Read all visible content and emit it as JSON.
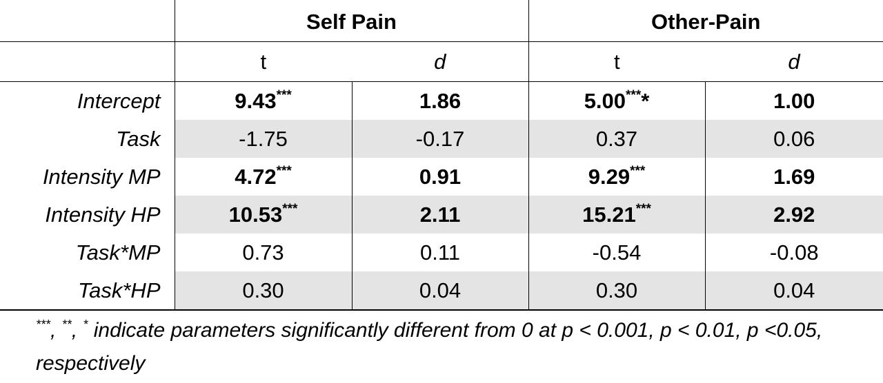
{
  "table": {
    "groups": [
      {
        "label": "Self Pain"
      },
      {
        "label": "Other-Pain"
      }
    ],
    "subheaders": [
      "t",
      "d",
      "t",
      "d"
    ],
    "rows": [
      {
        "label": "Intercept",
        "cells": [
          {
            "value": "9.43",
            "sig": "***",
            "sig_after": "",
            "bold": true
          },
          {
            "value": "1.86",
            "sig": "",
            "sig_after": "",
            "bold": true
          },
          {
            "value": "5.00",
            "sig": "***",
            "sig_after": "*",
            "bold": true
          },
          {
            "value": "1.00",
            "sig": "",
            "sig_after": "",
            "bold": true
          }
        ]
      },
      {
        "label": "Task",
        "cells": [
          {
            "value": "-1.75",
            "sig": "",
            "sig_after": "",
            "bold": false
          },
          {
            "value": "-0.17",
            "sig": "",
            "sig_after": "",
            "bold": false
          },
          {
            "value": "0.37",
            "sig": "",
            "sig_after": "",
            "bold": false
          },
          {
            "value": "0.06",
            "sig": "",
            "sig_after": "",
            "bold": false
          }
        ]
      },
      {
        "label": "Intensity MP",
        "cells": [
          {
            "value": "4.72",
            "sig": "***",
            "sig_after": "",
            "bold": true
          },
          {
            "value": "0.91",
            "sig": "",
            "sig_after": "",
            "bold": true
          },
          {
            "value": "9.29",
            "sig": "***",
            "sig_after": "",
            "bold": true
          },
          {
            "value": "1.69",
            "sig": "",
            "sig_after": "",
            "bold": true
          }
        ]
      },
      {
        "label": "Intensity HP",
        "cells": [
          {
            "value": "10.53",
            "sig": "***",
            "sig_after": "",
            "bold": true
          },
          {
            "value": "2.11",
            "sig": "",
            "sig_after": "",
            "bold": true
          },
          {
            "value": "15.21",
            "sig": "***",
            "sig_after": "",
            "bold": true
          },
          {
            "value": "2.92",
            "sig": "",
            "sig_after": "",
            "bold": true
          }
        ]
      },
      {
        "label": "Task*MP",
        "cells": [
          {
            "value": "0.73",
            "sig": "",
            "sig_after": "",
            "bold": false
          },
          {
            "value": "0.11",
            "sig": "",
            "sig_after": "",
            "bold": false
          },
          {
            "value": "-0.54",
            "sig": "",
            "sig_after": "",
            "bold": false
          },
          {
            "value": "-0.08",
            "sig": "",
            "sig_after": "",
            "bold": false
          }
        ]
      },
      {
        "label": "Task*HP",
        "cells": [
          {
            "value": "0.30",
            "sig": "",
            "sig_after": "",
            "bold": false
          },
          {
            "value": "0.04",
            "sig": "",
            "sig_after": "",
            "bold": false
          },
          {
            "value": "0.30",
            "sig": "",
            "sig_after": "",
            "bold": false
          },
          {
            "value": "0.04",
            "sig": "",
            "sig_after": "",
            "bold": false
          }
        ]
      }
    ],
    "shading_color": "#e4e4e4"
  },
  "footnote": {
    "sup1": "***",
    "sep1": ", ",
    "sup2": "**",
    "sep2": ", ",
    "sup3": "*",
    "text": " indicate parameters significantly different from 0 at p < 0.001, p < 0.01, p <0.05, respectively"
  }
}
